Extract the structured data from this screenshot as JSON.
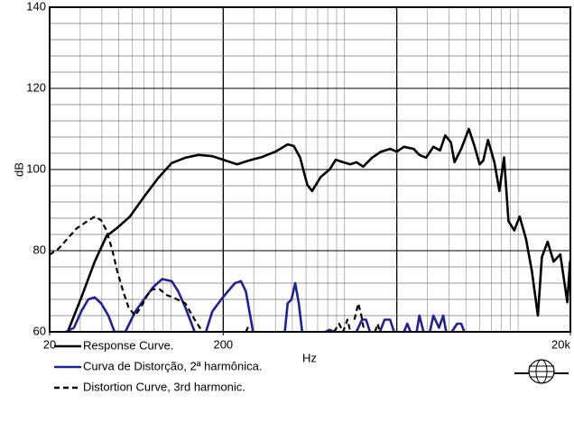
{
  "chart_data": {
    "type": "line",
    "log_x": true,
    "grid": true,
    "minor_grid": true,
    "ylabel": "dB",
    "xlabel": "Hz",
    "xlim": [
      20,
      20000
    ],
    "xticks": [
      20,
      200,
      {
        "value": 20000,
        "label": "20k"
      }
    ],
    "ylim": [
      60,
      140
    ],
    "yticks": [
      60,
      80,
      100,
      120,
      140
    ],
    "series": [
      {
        "name": "Response Curve.",
        "color": "#000000",
        "line_style": "solid",
        "x": [
          25.4,
          30.4,
          36.4,
          42.5,
          49,
          58,
          70,
          84,
          101,
          121,
          144,
          173,
          207,
          240,
          280,
          335,
          400,
          470,
          510,
          555,
          610,
          650,
          730,
          820,
          890,
          980,
          1080,
          1170,
          1280,
          1440,
          1620,
          1830,
          2000,
          2200,
          2500,
          2700,
          2950,
          3250,
          3550,
          3800,
          4100,
          4300,
          4700,
          5200,
          5600,
          6000,
          6300,
          6700,
          7300,
          7800,
          8300,
          8800,
          9500,
          10200,
          11100,
          12000,
          13000,
          13700,
          14800,
          16000,
          17500,
          19200,
          19900,
          20000
        ],
        "values": [
          60,
          68.4,
          77.3,
          83.6,
          85.6,
          88.4,
          93.3,
          97.8,
          101.6,
          102.9,
          103.6,
          103.3,
          102.2,
          101.3,
          102.2,
          103.1,
          104.4,
          106.2,
          105.8,
          102.9,
          96.2,
          94.7,
          98.2,
          100,
          102.4,
          101.8,
          101.3,
          101.8,
          100.7,
          102.9,
          104.4,
          105.1,
          104.4,
          105.6,
          105.1,
          103.6,
          102.9,
          105.6,
          104.7,
          108.4,
          106.7,
          101.8,
          105.1,
          110,
          105.8,
          101.3,
          102.2,
          107.3,
          101.8,
          94.7,
          103,
          87.3,
          85,
          88.4,
          82.9,
          75,
          64,
          78.4,
          82.2,
          77.3,
          79.1,
          67.3,
          77.3,
          70.7
        ]
      },
      {
        "name": "Curva de Distorção, 2ª harmônica.",
        "color": "#22228a",
        "line_style": "solid",
        "x": [
          24.8,
          27.6,
          30.4,
          33.4,
          36.4,
          39.6,
          43.6,
          47.3,
          54.6,
          62.3,
          70,
          79,
          89,
          101,
          110,
          121,
          137,
          null,
          159,
          173,
          195,
          213,
          234,
          253,
          270,
          297,
          null,
          453,
          470,
          495,
          520,
          545,
          570,
          null,
          775,
          820,
          870,
          null,
          1170,
          1260,
          1330,
          1400,
          null,
          1600,
          1700,
          1830,
          1930,
          null,
          2200,
          2300,
          2400,
          null,
          2600,
          2700,
          2850,
          null,
          3100,
          3250,
          3500,
          3700,
          3850,
          null,
          4150,
          4450,
          4700,
          4900
        ],
        "values": [
          60,
          61,
          65,
          68,
          68.5,
          67,
          64,
          60,
          60,
          65,
          68,
          71,
          73,
          72.5,
          70,
          66,
          60,
          null,
          60,
          65,
          68,
          70,
          72,
          72.5,
          70,
          60,
          null,
          60,
          67,
          68,
          72,
          67,
          60,
          null,
          60,
          60.5,
          60,
          null,
          60,
          63,
          63,
          60,
          null,
          60,
          63,
          63,
          60,
          null,
          60,
          62,
          60,
          null,
          60,
          64,
          60,
          null,
          60,
          64,
          61,
          64,
          60,
          null,
          60,
          62,
          62,
          60
        ]
      },
      {
        "name": "Distortion Curve, 3rd harmonic.",
        "color": "#000000",
        "line_style": "dashed",
        "x": [
          20,
          22.5,
          25.4,
          28.6,
          32.3,
          36.4,
          39.6,
          42.5,
          46,
          49,
          53,
          57,
          62,
          67,
          73,
          78,
          86,
          95,
          103,
          121,
          137,
          152,
          null,
          270,
          277,
          284,
          null,
          870,
          930,
          980,
          1040,
          1080,
          null,
          1140,
          1200,
          1250,
          1300,
          null,
          1500,
          1550,
          1600
        ],
        "values": [
          79,
          80.5,
          83,
          85.5,
          87,
          88.4,
          87.5,
          85,
          80,
          75,
          70,
          66,
          64,
          66,
          69,
          70.5,
          70.5,
          69,
          68.5,
          67,
          63,
          60,
          null,
          60,
          61,
          60,
          null,
          60,
          62,
          60,
          63,
          60,
          null,
          63,
          67,
          64,
          60,
          null,
          60,
          62,
          60
        ]
      }
    ]
  }
}
